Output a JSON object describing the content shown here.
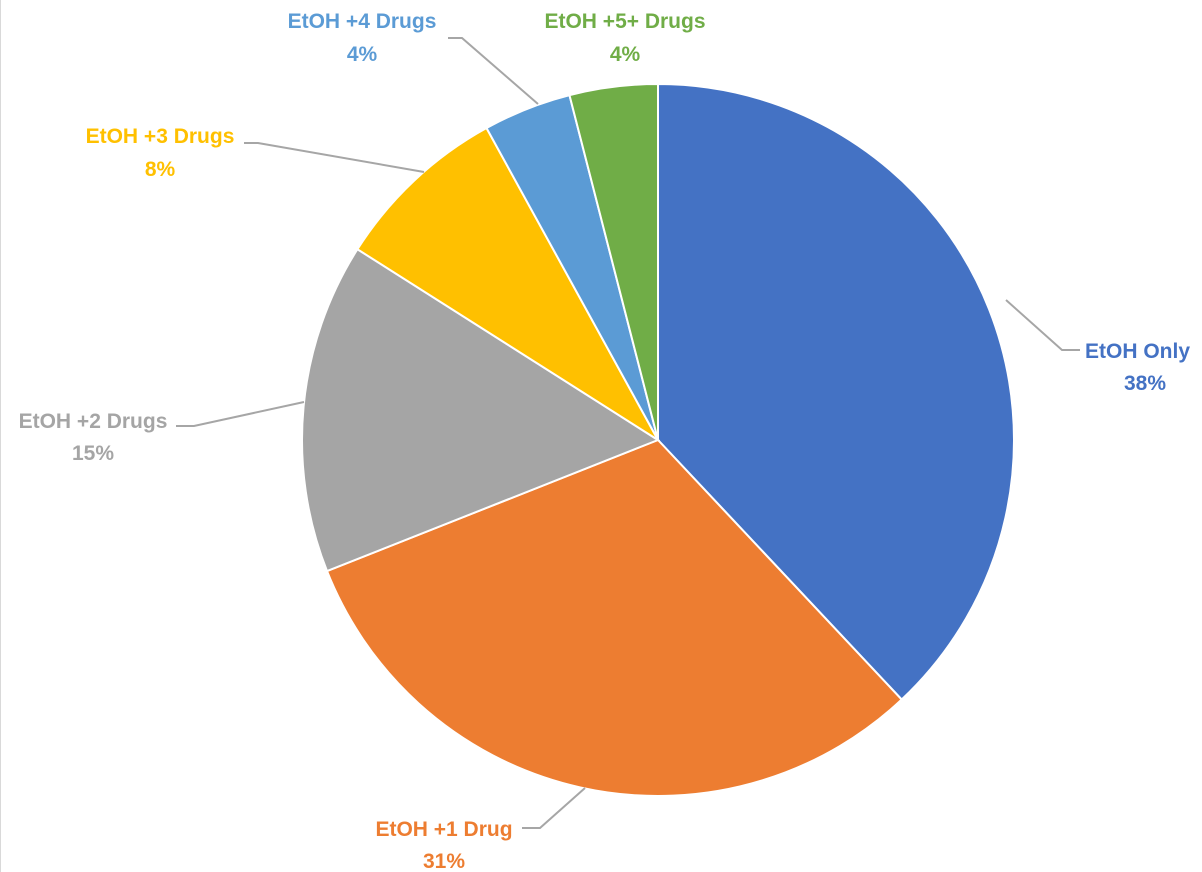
{
  "chart_data": {
    "type": "pie",
    "title": "",
    "start_angle_deg": 0,
    "direction": "clockwise",
    "slices": [
      {
        "label": "EtOH Only",
        "value": 38,
        "value_label": "38%",
        "color": "#4472C4"
      },
      {
        "label": "EtOH +1 Drug",
        "value": 31,
        "value_label": "31%",
        "color": "#ED7D31"
      },
      {
        "label": "EtOH +2 Drugs",
        "value": 15,
        "value_label": "15%",
        "color": "#A5A5A5"
      },
      {
        "label": "EtOH +3 Drugs",
        "value": 8,
        "value_label": "8%",
        "color": "#FFC000"
      },
      {
        "label": "EtOH +4 Drugs",
        "value": 4,
        "value_label": "4%",
        "color": "#5B9BD5"
      },
      {
        "label": "EtOH +5+ Drugs",
        "value": 4,
        "value_label": "4%",
        "color": "#70AD47"
      }
    ],
    "leader_line_color": "#A6A6A6"
  }
}
